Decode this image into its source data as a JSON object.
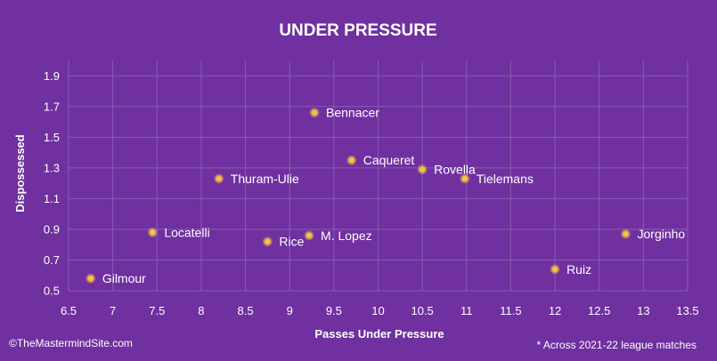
{
  "chart_data": {
    "type": "scatter",
    "title": "UNDER PRESSURE",
    "xlabel": "Passes Under Pressure",
    "ylabel": "Dispossessed",
    "xlim": [
      6.5,
      13.5
    ],
    "ylim": [
      0.5,
      2.0
    ],
    "x_ticks": [
      "6.5",
      "7",
      "7.5",
      "8",
      "8.5",
      "9",
      "9.5",
      "10",
      "10.5",
      "11",
      "11.5",
      "12",
      "12.5",
      "13",
      "13.5"
    ],
    "y_ticks": [
      "0.5",
      "0.7",
      "0.9",
      "1.1",
      "1.3",
      "1.5",
      "1.7",
      "1.9"
    ],
    "grid": true,
    "points": [
      {
        "label": "Bennacer",
        "x": 9.28,
        "y": 1.66
      },
      {
        "label": "Caqueret",
        "x": 9.7,
        "y": 1.35
      },
      {
        "label": "Rovella",
        "x": 10.5,
        "y": 1.29
      },
      {
        "label": "Tielemans",
        "x": 10.98,
        "y": 1.23
      },
      {
        "label": "Thuram-Ulie",
        "x": 8.2,
        "y": 1.23
      },
      {
        "label": "Locatelli",
        "x": 7.45,
        "y": 0.88
      },
      {
        "label": "M. Lopez",
        "x": 9.22,
        "y": 0.86
      },
      {
        "label": "Rice",
        "x": 8.75,
        "y": 0.82
      },
      {
        "label": "Jorginho",
        "x": 12.8,
        "y": 0.87
      },
      {
        "label": "Ruiz",
        "x": 12.0,
        "y": 0.64
      },
      {
        "label": "Gilmour",
        "x": 6.75,
        "y": 0.58
      }
    ],
    "point_color": "#f5c542"
  },
  "footer": {
    "credit": "©TheMastermindSite.com",
    "note": "* Across 2021-22 league matches"
  }
}
